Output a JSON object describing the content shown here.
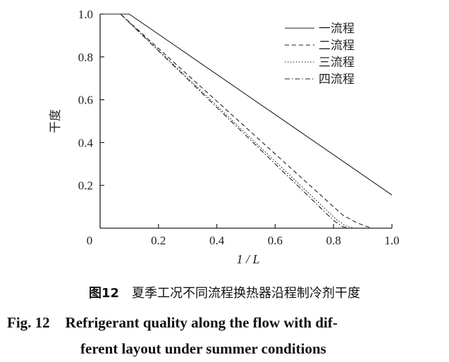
{
  "chart_data": {
    "type": "line",
    "title": "",
    "xlabel": "1 / L",
    "ylabel": "干度",
    "xlim": [
      0,
      1.0
    ],
    "ylim": [
      0,
      1.0
    ],
    "origin_label": "0",
    "xticks": [
      0.2,
      0.4,
      0.6,
      0.8,
      1.0
    ],
    "xtick_labels": [
      "0.2",
      "0.4",
      "0.6",
      "0.8",
      "1.0"
    ],
    "yticks": [
      0.2,
      0.4,
      0.6,
      0.8,
      1.0
    ],
    "ytick_labels": [
      "0.2",
      "0.4",
      "0.6",
      "0.8",
      "1.0"
    ],
    "grid": false,
    "legend_placement": "top-right",
    "series": [
      {
        "name": "一流程",
        "style": "solid",
        "x": [
          0,
          0.1,
          1.0
        ],
        "y": [
          1.0,
          1.0,
          0.155
        ]
      },
      {
        "name": "二流程",
        "style": "dashed",
        "x": [
          0,
          0.07,
          0.83,
          0.88,
          0.93,
          1.0
        ],
        "y": [
          1.0,
          1.0,
          0.063,
          0.025,
          0,
          0
        ]
      },
      {
        "name": "三流程",
        "style": "dotted",
        "x": [
          0,
          0.07,
          0.81,
          0.84,
          0.87,
          1.0
        ],
        "y": [
          1.0,
          1.0,
          0.04,
          0.012,
          0,
          0
        ]
      },
      {
        "name": "四流程",
        "style": "dash-dot",
        "x": [
          0,
          0.07,
          0.8,
          0.83,
          0.85,
          1.0
        ],
        "y": [
          1.0,
          1.0,
          0.036,
          0.008,
          0,
          0
        ]
      }
    ],
    "line_color": "#222222"
  },
  "caption": {
    "cn_label": "图12",
    "cn_text": "夏季工况不同流程换热器沿程制冷剂干度",
    "en_label": "Fig. 12",
    "en_text_line1": "Refrigerant quality along the flow with dif-",
    "en_text_line2": "ferent layout under summer conditions"
  }
}
